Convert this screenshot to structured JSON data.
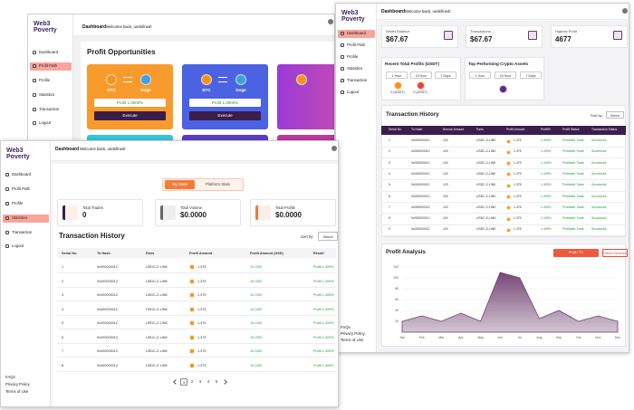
{
  "windows": {
    "profit_path": {
      "sidebar": {
        "logo": "Web3 Poverty",
        "nav": [
          "Dashboard",
          "Profit Path",
          "Profile",
          "Statistics",
          "Transaction",
          "Logout"
        ],
        "active": "Profit Path"
      },
      "header": {
        "title": "Dashboard",
        "subtitle": "Welcome back, undefined!"
      },
      "section_title": "Profit Opportunities",
      "cards": [
        {
          "from": "BTC",
          "to": "Doge",
          "profit": "Profit 1.0000%",
          "button": "Execute",
          "color": "#f89b2c"
        },
        {
          "from": "BTC",
          "to": "Doge",
          "profit": "Profit 1.0000%",
          "button": "Execute",
          "color": "#4b62e3"
        }
      ]
    },
    "dashboard": {
      "sidebar": {
        "logo": "Web3 Poverty",
        "nav": [
          "Dashboard",
          "Profit Path",
          "Profile",
          "Statistics",
          "Transaction",
          "Logout"
        ],
        "active": "Dashboard",
        "footer": [
          "FAQs",
          "Privacy Policy",
          "Terms of Use"
        ]
      },
      "header": {
        "title": "Dashboard",
        "subtitle": "Welcome back, undefined!"
      },
      "stats": [
        {
          "label": "Wallet Balance",
          "value": "$67.67"
        },
        {
          "label": "Transactions",
          "value": "$67.67"
        },
        {
          "label": "Highest Profit",
          "value": "4677"
        }
      ],
      "recent_profits": {
        "title": "Recent Total Profits (USDT)",
        "periods": [
          "1 Hour",
          "24 Hour",
          "7 Days"
        ],
        "amounts": [
          "0 (USDT)",
          "0 (USDT)"
        ]
      },
      "top_assets": {
        "title": "Top Performing Crypto Assets",
        "periods": [
          "1 Hour",
          "24 Hour",
          "7 Days"
        ]
      },
      "transactions": {
        "title": "Transaction History",
        "sort_label": "Sort by:",
        "sort_value": "Select",
        "columns": [
          "Serial No.",
          "To Hash",
          "Borrow Amount",
          "Pairs",
          "Profit Amount",
          "Profit%",
          "Profit Status",
          "Transaction Status"
        ],
        "rows": [
          [
            "1",
            "0x000000012",
            "120",
            "USDC-Z-LINK",
            "1.375",
            "1.409%",
            "Profitable Trade",
            "Successful"
          ],
          [
            "2",
            "0x000000012",
            "120",
            "USDC-Z-LINK",
            "1.375",
            "1.409%",
            "Profitable Trade",
            "Successful"
          ],
          [
            "3",
            "0x000000012",
            "120",
            "USDC-Z-LINK",
            "1.375",
            "1.409%",
            "Profitable Trade",
            "Successful"
          ],
          [
            "4",
            "0x000000012",
            "120",
            "USDC-Z-LINK",
            "1.375",
            "1.409%",
            "Profitable Trade",
            "Successful"
          ],
          [
            "5",
            "0x000000012",
            "120",
            "USDC-Z-LINK",
            "1.375",
            "1.409%",
            "Profitable Trade",
            "Successful"
          ],
          [
            "6",
            "0x000000012",
            "120",
            "USDC-Z-LINK",
            "1.375",
            "1.409%",
            "Profitable Trade",
            "Successful"
          ],
          [
            "7",
            "0x000000012",
            "120",
            "USDC-Z-LINK",
            "1.375",
            "1.409%",
            "Profitable Trade",
            "Successful"
          ],
          [
            "8",
            "0x000000012",
            "120",
            "USDC-Z-LINK",
            "1.375",
            "1.409%",
            "Profitable Trade",
            "Successful"
          ],
          [
            "9",
            "0x000000012",
            "120",
            "USDC-Z-LINK",
            "1.375",
            "1.409%",
            "Profitable Trade",
            "Successful"
          ]
        ]
      },
      "profit_analysis": {
        "title": "Profit Analysis",
        "buttons": [
          "Profit / TX",
          "Failed Reverted"
        ],
        "type": "area",
        "categories": [
          "Jan",
          "Feb",
          "Mar",
          "Apr",
          "May",
          "Jun",
          "Jul",
          "Aug",
          "Sep",
          "Oct",
          "Nov",
          "Dec"
        ],
        "values": [
          20,
          30,
          20,
          35,
          20,
          110,
          100,
          25,
          40,
          20,
          30,
          20
        ],
        "color": "#6e3f6e",
        "ylim": [
          0,
          120
        ],
        "yticks": [
          20,
          40,
          60,
          80,
          100,
          120
        ],
        "grid": true
      }
    },
    "statistics": {
      "sidebar": {
        "logo": "Web3 Poverty",
        "nav": [
          "Dashboard",
          "Profit Path",
          "Profile",
          "Statistics",
          "Transaction",
          "Logout"
        ],
        "active": "Statistics",
        "footer": [
          "FAQs",
          "Privacy Policy",
          "Terms of Use"
        ]
      },
      "header": {
        "title": "Dashboard",
        "subtitle": "Welcome back, undefined!"
      },
      "tabs": [
        "My Stats",
        "Platform Stats"
      ],
      "active_tab": "My Stats",
      "stats": [
        {
          "label": "Total Trades",
          "value": "0"
        },
        {
          "label": "Total Volume",
          "value": "$0.0000"
        },
        {
          "label": "Total Profits",
          "value": "$0.0000"
        }
      ],
      "transactions": {
        "title": "Transaction History",
        "sort_label": "Sort by:",
        "sort_value": "Select",
        "columns": [
          "Serial No.",
          "To Hash",
          "Pairs",
          "Profit Amount",
          "Profit Amount (USD)",
          "Result"
        ],
        "rows": [
          [
            "1",
            "0x000000012",
            "USDC-Z-LINK",
            "1.375",
            "10 USD",
            "Profit 1.409%"
          ],
          [
            "2",
            "0x000000012",
            "USDC-Z-LINK",
            "1.375",
            "10 USD",
            "Profit 1.409%"
          ],
          [
            "3",
            "0x000000012",
            "USDC-Z-LINK",
            "1.375",
            "10 USD",
            "Profit 1.409%"
          ],
          [
            "4",
            "0x000000012",
            "USDC-Z-LINK",
            "1.375",
            "10 USD",
            "Profit 1.409%"
          ],
          [
            "5",
            "0x000000012",
            "USDC-Z-LINK",
            "1.375",
            "10 USD",
            "Profit 1.409%"
          ],
          [
            "6",
            "0x000000012",
            "USDC-Z-LINK",
            "1.375",
            "10 USD",
            "Profit 1.409%"
          ],
          [
            "7",
            "0x000000012",
            "USDC-Z-LINK",
            "1.375",
            "10 USD",
            "Profit 1.409%"
          ],
          [
            "8",
            "0x000000012",
            "USDC-Z-LINK",
            "1.375",
            "10 USD",
            "Profit 1.409%"
          ]
        ]
      },
      "pagination": [
        "1",
        "2",
        "3",
        "4",
        "5"
      ],
      "current_page": "1"
    }
  }
}
